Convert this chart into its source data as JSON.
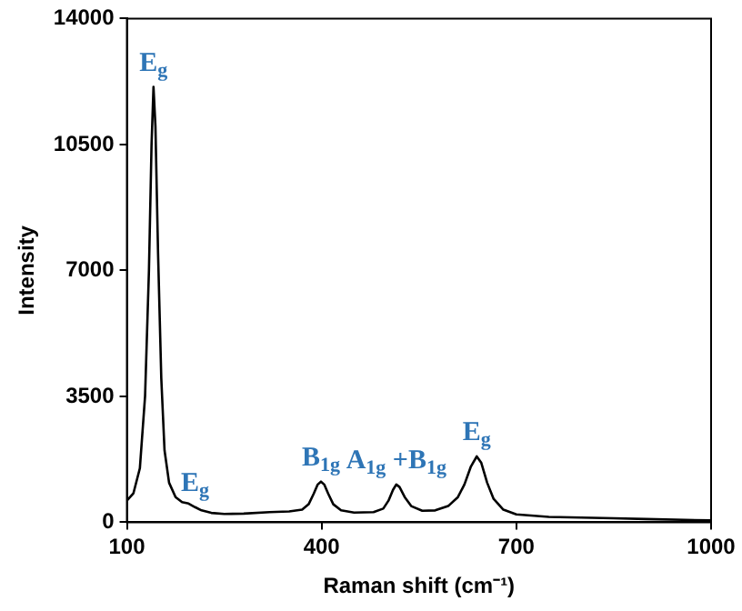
{
  "chart_data": {
    "type": "line",
    "xlabel": "Raman shift (cm⁻¹)",
    "ylabel": "Intensity",
    "x": [
      100,
      110,
      120,
      128,
      134,
      138,
      141,
      144,
      148,
      153,
      158,
      165,
      175,
      185,
      195,
      205,
      215,
      230,
      250,
      280,
      320,
      350,
      370,
      380,
      388,
      394,
      399,
      404,
      410,
      418,
      430,
      450,
      480,
      495,
      503,
      510,
      515,
      520,
      528,
      538,
      555,
      575,
      595,
      610,
      620,
      630,
      639,
      646,
      655,
      665,
      680,
      700,
      750,
      800,
      850,
      900,
      1000
    ],
    "series": [
      {
        "color": "#000000",
        "values": [
          600,
          800,
          1500,
          3500,
          7000,
          10500,
          12100,
          11000,
          7500,
          4000,
          2000,
          1100,
          700,
          560,
          520,
          420,
          330,
          260,
          230,
          240,
          280,
          300,
          350,
          500,
          800,
          1050,
          1130,
          1050,
          800,
          500,
          330,
          270,
          280,
          380,
          600,
          900,
          1050,
          980,
          700,
          450,
          320,
          330,
          450,
          700,
          1050,
          1550,
          1830,
          1650,
          1100,
          650,
          350,
          220,
          150,
          130,
          110,
          90,
          50
        ]
      }
    ],
    "xlim": [
      100,
      1000
    ],
    "xticks": [
      100,
      400,
      700,
      1000
    ],
    "ylim": [
      0,
      14000
    ],
    "yticks": [
      0,
      3500,
      7000,
      10500,
      14000
    ],
    "grid": false,
    "legend": false,
    "marker": "none",
    "line_style": "solid",
    "annotations": [
      {
        "text": "E$_{g}$",
        "x": 141,
        "y": 12100
      },
      {
        "text": "E$_{g}$",
        "x": 205,
        "y": 420
      },
      {
        "text": "B$_{1g}$",
        "x": 399,
        "y": 1130
      },
      {
        "text": "A$_{1g}$ +B$_{1g}$",
        "x": 515,
        "y": 1050
      },
      {
        "text": "E$_{g}$",
        "x": 639,
        "y": 1830
      }
    ]
  }
}
